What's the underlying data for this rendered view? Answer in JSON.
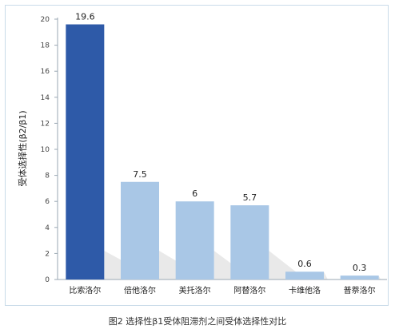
{
  "chart_data": {
    "type": "bar",
    "title": "",
    "xlabel": "",
    "ylabel": "受体选择性(β2/β1)",
    "ylim": [
      0,
      20
    ],
    "yticks": [
      0,
      2,
      4,
      6,
      8,
      10,
      12,
      14,
      16,
      18,
      20
    ],
    "grid": false,
    "categories": [
      "比索洛尔",
      "倍他洛尔",
      "美托洛尔",
      "阿替洛尔",
      "卡维他洛",
      "普萘洛尔"
    ],
    "values": [
      19.6,
      7.5,
      6,
      5.7,
      0.6,
      0.3
    ],
    "data_labels": [
      "19.6",
      "7.5",
      "6",
      "5.7",
      "0.6",
      "0.3"
    ],
    "colors": {
      "highlight": "#2e5aa8",
      "bar": "#a9c7e6",
      "shadow": "#e4e4e4",
      "axis": "#9aa7b3"
    }
  },
  "caption": "图2 选择性β1受体阻滞剂之间受体选择性对比"
}
